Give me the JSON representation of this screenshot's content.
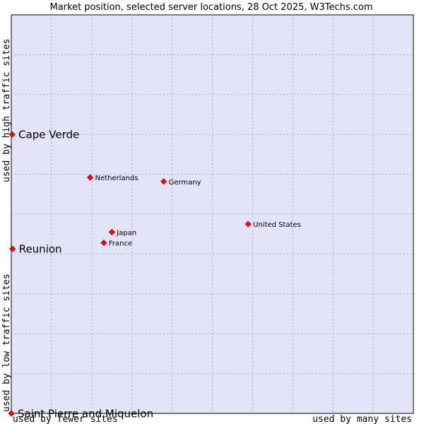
{
  "chart_data": {
    "type": "scatter",
    "title": "Market position, selected server locations, 28 Oct 2025, W3Techs.com",
    "xlabel_left": "used by fewer sites",
    "xlabel_right": "used by many sites",
    "ylabel_low": "used by low traffic sites",
    "ylabel_high": "used by high traffic sites",
    "xlim": [
      0,
      10
    ],
    "ylim": [
      0,
      10
    ],
    "grid": true,
    "colors": {
      "plot_bg": "#e3e4f8",
      "point": "#ff0000",
      "point_stroke": "#b00000",
      "grid": "#a8a8c8"
    },
    "points": [
      {
        "name": "Cape Verde",
        "x": 0.02,
        "y": 7.0,
        "emphasis": true
      },
      {
        "name": "Reunion",
        "x": 0.03,
        "y": 4.13,
        "emphasis": true
      },
      {
        "name": "Saint Pierre and Miquelon",
        "x": 0.0,
        "y": 0.0,
        "emphasis": true
      },
      {
        "name": "Netherlands",
        "x": 1.96,
        "y": 5.92,
        "emphasis": false
      },
      {
        "name": "Germany",
        "x": 3.79,
        "y": 5.82,
        "emphasis": false
      },
      {
        "name": "United States",
        "x": 5.89,
        "y": 4.75,
        "emphasis": false
      },
      {
        "name": "Japan",
        "x": 2.5,
        "y": 4.55,
        "emphasis": false
      },
      {
        "name": "France",
        "x": 2.3,
        "y": 4.28,
        "emphasis": false
      }
    ]
  }
}
